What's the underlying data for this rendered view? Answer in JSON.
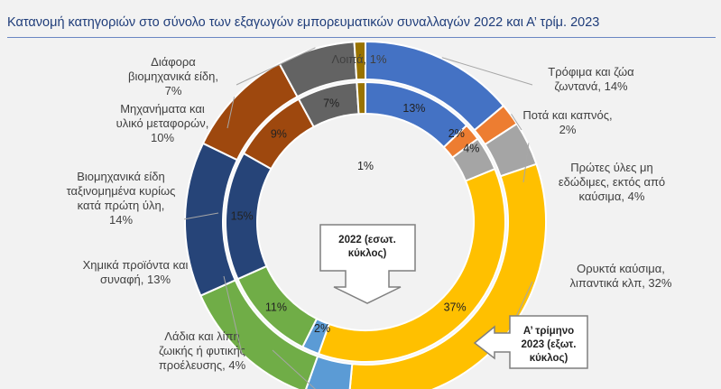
{
  "title": "Κατανομή κατηγοριών στο σύνολο των εξαγωγών εμπορευματικών συναλλαγών 2022 και Α’ τρίμ. 2023",
  "chart_data": {
    "type": "donut",
    "categories": [
      "Τρόφιμα και ζώα ζωντανά",
      "Ποτά και καπνός",
      "Πρώτες ύλες μη εδώδιμες, εκτός από καύσιμα",
      "Ορυκτά καύσιμα, λιπαντικά κλπ",
      "Λάδια και λίπη ζωικής ή φυτικής προέλευσης",
      "Χημικά προϊόντα και συναφή",
      "Βιομηχανικά είδη ταξινομημένα κυρίως κατά πρώτη ύλη",
      "Μηχανήματα και υλικό μεταφορών",
      "Διάφορα βιομηχανικά είδη",
      "Λοιπά"
    ],
    "colors": [
      "#4472c4",
      "#ed7d31",
      "#a5a5a5",
      "#ffc000",
      "#5b9bd5",
      "#70ad47",
      "#264478",
      "#9e480e",
      "#636363",
      "#997300"
    ],
    "series": [
      {
        "name": "2022 (εσωτ. κύκλος)",
        "ring": "inner",
        "values": [
          13,
          2,
          4,
          37,
          2,
          11,
          15,
          9,
          7,
          1
        ],
        "labels": [
          "13%",
          "2%",
          "4%",
          "37%",
          "2%",
          "11%",
          "15%",
          "9%",
          "7%",
          "1%"
        ]
      },
      {
        "name": "Α’ τρίμηνο 2023 (εξωτ. κύκλος)",
        "ring": "outer",
        "values": [
          14,
          2,
          4,
          32,
          4,
          13,
          14,
          10,
          7,
          1
        ],
        "labels": [
          [
            "Τρόφιμα και ζώα",
            "ζωντανά, 14%"
          ],
          [
            "Ποτά και καπνός,",
            "2%"
          ],
          [
            "Πρώτες ύλες μη",
            "εδώδιμες, εκτός από",
            "καύσιμα, 4%"
          ],
          [
            "Ορυκτά καύσιμα,",
            "λιπαντικά κλπ, 32%"
          ],
          [
            "Λάδια και λίπη",
            "ζωικής ή φυτικής",
            "προέλευσης, 4%"
          ],
          [
            "Χημικά προϊόντα και",
            "συναφή, 13%"
          ],
          [
            "Βιομηχανικά είδη",
            "ταξινομημένα κυρίως",
            "κατά πρώτη ύλη,",
            "14%"
          ],
          [
            "Μηχανήματα και",
            "υλικό μεταφορών,",
            "10%"
          ],
          [
            "Διάφορα",
            "βιομηχανικά είδη,",
            "7%"
          ],
          [
            "Λοιπά, 1%"
          ]
        ]
      }
    ],
    "callouts": [
      {
        "target": "inner",
        "lines": [
          "2022 (εσωτ.",
          "κύκλος)"
        ]
      },
      {
        "target": "outer",
        "lines": [
          "Α’ τρίμηνο",
          "2023 (εξωτ.",
          "κύκλος)"
        ]
      }
    ]
  }
}
